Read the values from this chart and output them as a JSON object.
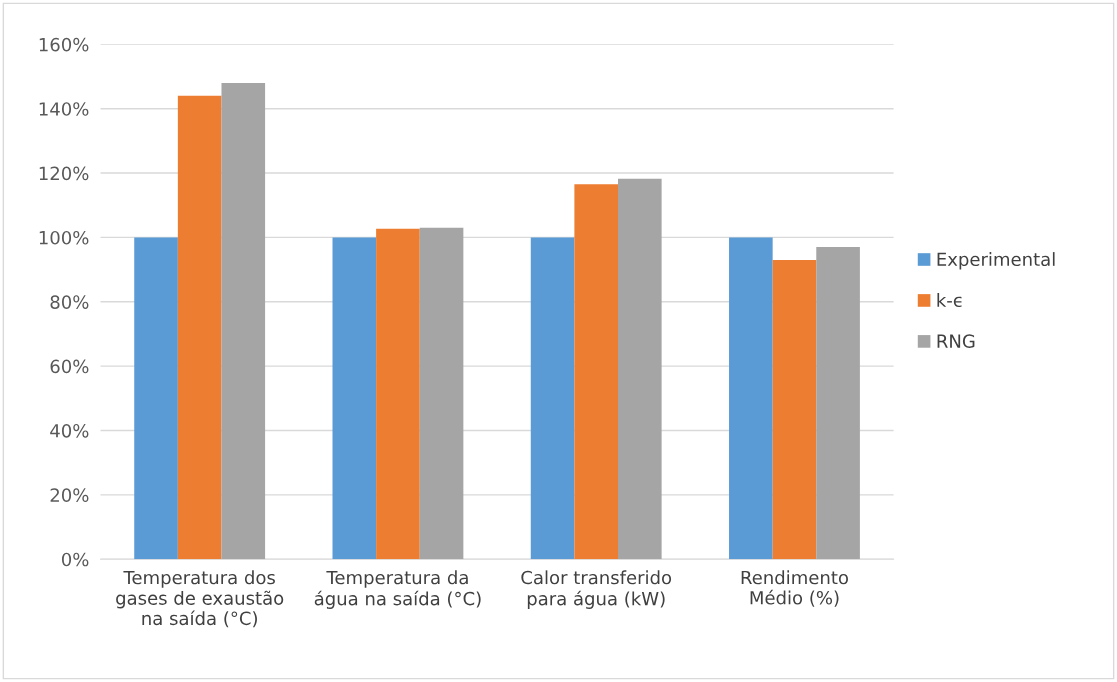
{
  "chart_data": {
    "type": "bar",
    "categories": [
      "Temperatura dos\ngases de exaustão\nna saída (°C)",
      "Temperatura da\nágua na saída (°C)",
      "Calor transferido\npara água (kW)",
      "Rendimento\nMédio (%)"
    ],
    "series": [
      {
        "name": "Experimental",
        "color": "#5b9bd5",
        "values": [
          100,
          100,
          100,
          100
        ]
      },
      {
        "name": "k-ϵ",
        "color": "#ed7d31",
        "values": [
          144,
          102.7,
          116.5,
          93
        ]
      },
      {
        "name": "RNG",
        "color": "#a5a5a5",
        "values": [
          148,
          103,
          118.2,
          97
        ]
      }
    ],
    "ylim": [
      0,
      160
    ],
    "yticks": [
      {
        "value": 0,
        "label": "0%"
      },
      {
        "value": 20,
        "label": "20%"
      },
      {
        "value": 40,
        "label": "40%"
      },
      {
        "value": 60,
        "label": "60%"
      },
      {
        "value": 80,
        "label": "80%"
      },
      {
        "value": 100,
        "label": "100%"
      },
      {
        "value": 120,
        "label": "120%"
      },
      {
        "value": 140,
        "label": "140%"
      },
      {
        "value": 160,
        "label": "160%"
      }
    ],
    "grid": "y",
    "legend": "right"
  }
}
